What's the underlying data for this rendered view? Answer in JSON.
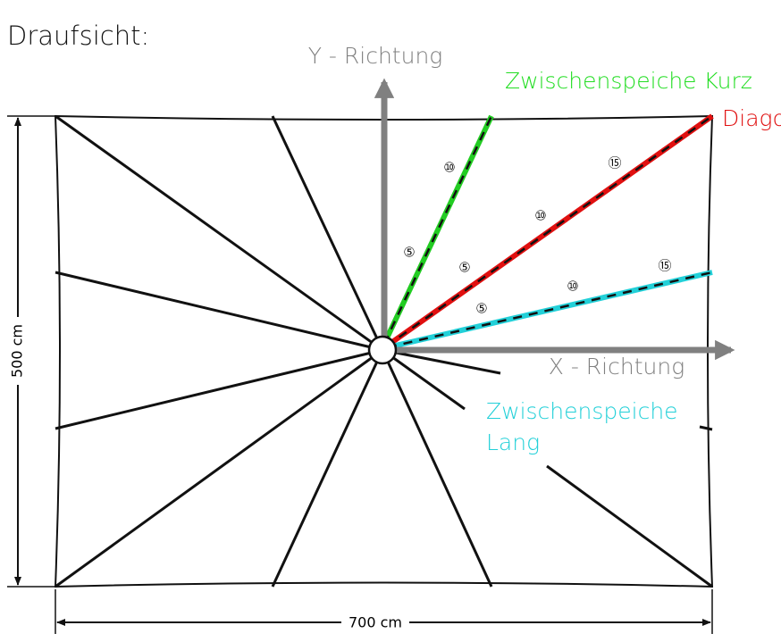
{
  "title": "Draufsicht:",
  "axes": {
    "y": "Y - Richtung",
    "x": "X - Richtung"
  },
  "dimensions": {
    "height": "500 cm",
    "width": "700 cm"
  },
  "spokes": {
    "short": {
      "name": "Zwischenspeiche Kurz",
      "markers": [
        "⑩",
        "⑤"
      ]
    },
    "diagonal": {
      "name": "Diago",
      "markers": [
        "⑮",
        "⑩",
        "⑤"
      ]
    },
    "long": {
      "name": [
        "Zwischenspeiche",
        "Lang"
      ],
      "markers": [
        "⑮",
        "⑩",
        "⑤"
      ]
    }
  }
}
